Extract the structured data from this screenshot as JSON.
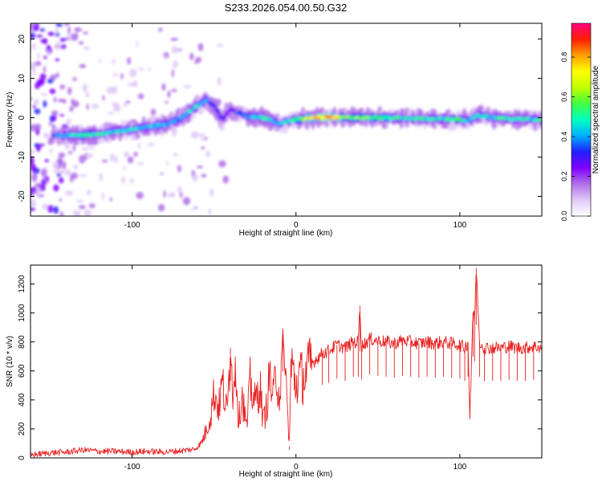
{
  "title": "S233.2026.054.00.50.G32",
  "chart_data": [
    {
      "type": "heatmap",
      "xlabel": "Height of straight line (km)",
      "ylabel": "Frequency (Hz)",
      "xlim": [
        -162,
        150
      ],
      "ylim": [
        -25,
        24
      ],
      "xticks": [
        -100,
        0,
        100
      ],
      "yticks": [
        -20,
        -10,
        0,
        10,
        20
      ],
      "colorbar": {
        "label": "Normalized spectral amplitude",
        "range": [
          0,
          0.97
        ],
        "ticks": [
          0.0,
          0.2,
          0.4,
          0.6,
          0.8
        ],
        "tick_labels": [
          "0.0",
          "0.2",
          "0.4",
          "0.6",
          "0.8"
        ],
        "colormap": [
          "#ffffff",
          "#e0c8f8",
          "#b070e8",
          "#8000ff",
          "#2020ff",
          "#00b0ff",
          "#00ffc0",
          "#40ff40",
          "#c0ff00",
          "#ffff00",
          "#ffa000",
          "#ff2000",
          "#ff0080"
        ]
      },
      "ridge": [
        {
          "x": -145,
          "f": -4.5,
          "a": 0.35
        },
        {
          "x": -130,
          "f": -4.5,
          "a": 0.55
        },
        {
          "x": -115,
          "f": -3.8,
          "a": 0.5
        },
        {
          "x": -100,
          "f": -3.0,
          "a": 0.45
        },
        {
          "x": -88,
          "f": -2.2,
          "a": 0.45
        },
        {
          "x": -78,
          "f": -1.5,
          "a": 0.4
        },
        {
          "x": -70,
          "f": 0.0,
          "a": 0.4
        },
        {
          "x": -62,
          "f": 2.5,
          "a": 0.45
        },
        {
          "x": -55,
          "f": 4.5,
          "a": 0.4
        },
        {
          "x": -50,
          "f": 3.0,
          "a": 0.35
        },
        {
          "x": -45,
          "f": -0.5,
          "a": 0.3
        },
        {
          "x": -40,
          "f": 2.0,
          "a": 0.3
        },
        {
          "x": -30,
          "f": 0.5,
          "a": 0.4
        },
        {
          "x": -20,
          "f": 0.0,
          "a": 0.5
        },
        {
          "x": -10,
          "f": -1.5,
          "a": 0.4
        },
        {
          "x": 0,
          "f": -0.5,
          "a": 0.55
        },
        {
          "x": 10,
          "f": 0.0,
          "a": 0.8
        },
        {
          "x": 20,
          "f": 0.2,
          "a": 0.9
        },
        {
          "x": 30,
          "f": 0.0,
          "a": 0.6
        },
        {
          "x": 50,
          "f": 0.0,
          "a": 0.55
        },
        {
          "x": 70,
          "f": -0.2,
          "a": 0.5
        },
        {
          "x": 90,
          "f": -0.3,
          "a": 0.5
        },
        {
          "x": 100,
          "f": -0.5,
          "a": 0.55
        },
        {
          "x": 105,
          "f": -0.8,
          "a": 0.4
        },
        {
          "x": 110,
          "f": 0.5,
          "a": 0.45
        },
        {
          "x": 130,
          "f": -0.3,
          "a": 0.5
        },
        {
          "x": 148,
          "f": -0.5,
          "a": 0.5
        }
      ]
    },
    {
      "type": "line",
      "xlabel": "Height of straight line (km)",
      "ylabel": "SNR (10 * v/v)",
      "xlim": [
        -162,
        150
      ],
      "ylim": [
        0,
        1330
      ],
      "xticks": [
        -100,
        0,
        100
      ],
      "yticks": [
        0,
        200,
        400,
        600,
        800,
        1000,
        1200
      ],
      "color": "#e82020",
      "series": [
        {
          "name": "SNR",
          "x": [
            -162,
            -150,
            -140,
            -130,
            -120,
            -110,
            -100,
            -90,
            -80,
            -70,
            -62,
            -58,
            -55,
            -52,
            -50,
            -47,
            -45,
            -42,
            -40,
            -38,
            -37,
            -35,
            -33,
            -30,
            -28,
            -25,
            -22,
            -20,
            -18,
            -16,
            -14,
            -12,
            -10,
            -8,
            -6,
            -4,
            -3,
            -2,
            -1,
            0,
            2,
            5,
            8,
            12,
            16,
            20,
            25,
            30,
            35,
            38,
            39,
            40,
            45,
            50,
            55,
            60,
            65,
            70,
            75,
            80,
            85,
            90,
            95,
            100,
            103,
            105,
            106,
            108,
            109,
            110,
            112,
            115,
            120,
            125,
            130,
            135,
            140,
            145,
            150
          ],
          "y": [
            20,
            35,
            40,
            55,
            45,
            45,
            40,
            45,
            40,
            50,
            60,
            100,
            180,
            300,
            450,
            350,
            520,
            300,
            760,
            400,
            700,
            250,
            450,
            200,
            520,
            380,
            500,
            250,
            350,
            580,
            400,
            600,
            420,
            850,
            500,
            80,
            650,
            600,
            550,
            500,
            560,
            560,
            620,
            680,
            720,
            740,
            780,
            760,
            800,
            800,
            1050,
            770,
            820,
            810,
            800,
            790,
            810,
            800,
            790,
            800,
            790,
            800,
            790,
            780,
            760,
            800,
            280,
            1000,
            950,
            1310,
            800,
            760,
            760,
            760,
            770,
            760,
            760,
            770,
            760
          ]
        }
      ]
    }
  ]
}
